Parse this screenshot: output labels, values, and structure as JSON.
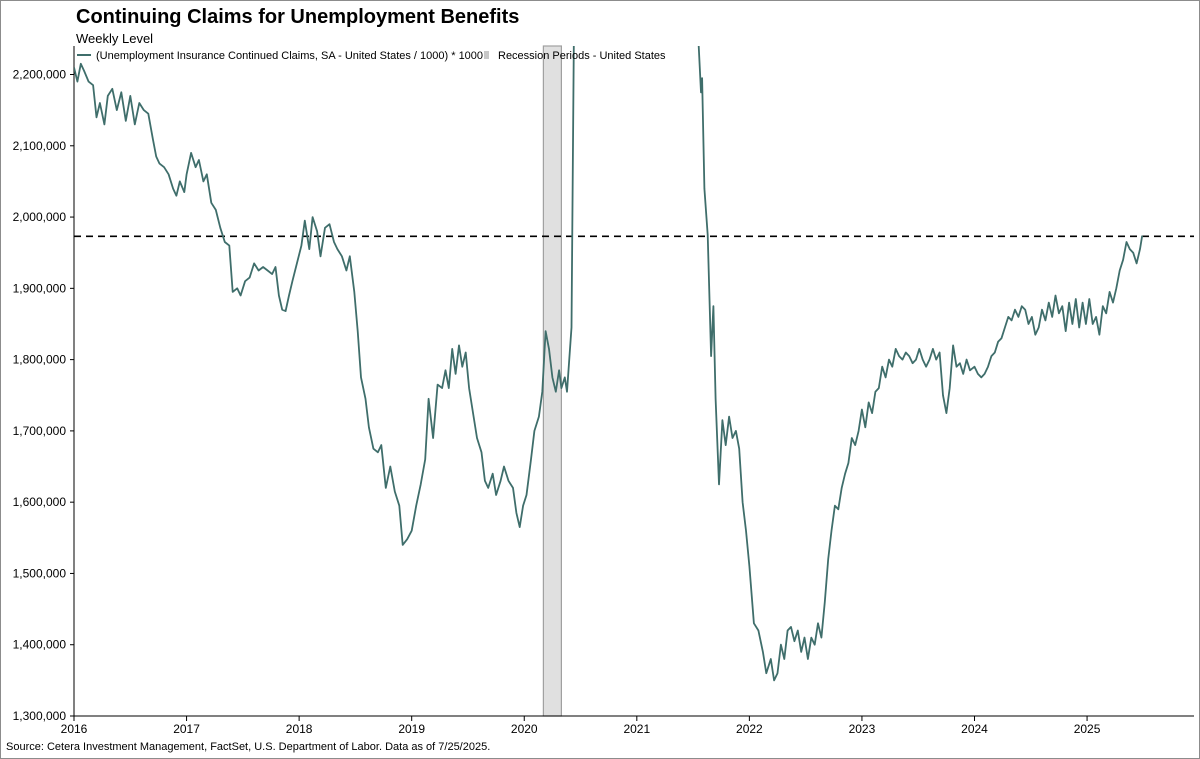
{
  "chart_data": {
    "type": "line",
    "title": "Continuing Claims for Unemployment Benefits",
    "subtitle": "Weekly Level",
    "source": "Source: Cetera Investment Management, FactSet, U.S. Department of Labor. Data as of 7/25/2025.",
    "ylim": [
      1300000,
      2240000
    ],
    "xlim": [
      2016.0,
      2025.95
    ],
    "y_ticks": [
      1300000,
      1400000,
      1500000,
      1600000,
      1700000,
      1800000,
      1900000,
      2000000,
      2100000,
      2200000
    ],
    "y_tick_labels": [
      "1,300,000",
      "1,400,000",
      "1,500,000",
      "1,600,000",
      "1,700,000",
      "1,800,000",
      "1,900,000",
      "2,000,000",
      "2,100,000",
      "2,200,000"
    ],
    "x_ticks": [
      2016,
      2017,
      2018,
      2019,
      2020,
      2021,
      2022,
      2023,
      2024,
      2025
    ],
    "x_tick_labels": [
      "2016",
      "2017",
      "2018",
      "2019",
      "2020",
      "2021",
      "2022",
      "2023",
      "2024",
      "2025"
    ],
    "reference_line": 1973000,
    "grid": false,
    "legend_position": "top-left",
    "legend": [
      {
        "label": "(Unemployment Insurance Continued Claims, SA - United States / 1000) * 1000",
        "type": "line"
      },
      {
        "label": "Recession Periods - United States",
        "type": "bar"
      }
    ],
    "recession": [
      [
        2020.17,
        2020.33
      ]
    ],
    "colors": {
      "line": "#3f6e6b",
      "recession": "#e0e0e0",
      "recession_edge": "#a0a0a0",
      "reference": "#000000"
    },
    "series": [
      {
        "name": "(Unemployment Insurance Continued Claims, SA - United States / 1000) * 1000",
        "points": [
          [
            2016.0,
            2210000
          ],
          [
            2016.03,
            2190000
          ],
          [
            2016.06,
            2215000
          ],
          [
            2016.09,
            2205000
          ],
          [
            2016.13,
            2190000
          ],
          [
            2016.17,
            2185000
          ],
          [
            2016.2,
            2140000
          ],
          [
            2016.23,
            2160000
          ],
          [
            2016.27,
            2130000
          ],
          [
            2016.3,
            2170000
          ],
          [
            2016.34,
            2180000
          ],
          [
            2016.38,
            2150000
          ],
          [
            2016.42,
            2175000
          ],
          [
            2016.46,
            2135000
          ],
          [
            2016.5,
            2170000
          ],
          [
            2016.54,
            2130000
          ],
          [
            2016.58,
            2160000
          ],
          [
            2016.62,
            2150000
          ],
          [
            2016.66,
            2145000
          ],
          [
            2016.7,
            2110000
          ],
          [
            2016.73,
            2085000
          ],
          [
            2016.76,
            2075000
          ],
          [
            2016.8,
            2070000
          ],
          [
            2016.84,
            2060000
          ],
          [
            2016.88,
            2040000
          ],
          [
            2016.91,
            2030000
          ],
          [
            2016.94,
            2050000
          ],
          [
            2016.98,
            2035000
          ],
          [
            2017.0,
            2060000
          ],
          [
            2017.04,
            2090000
          ],
          [
            2017.08,
            2070000
          ],
          [
            2017.11,
            2080000
          ],
          [
            2017.15,
            2050000
          ],
          [
            2017.18,
            2060000
          ],
          [
            2017.22,
            2020000
          ],
          [
            2017.26,
            2010000
          ],
          [
            2017.3,
            1985000
          ],
          [
            2017.34,
            1965000
          ],
          [
            2017.38,
            1960000
          ],
          [
            2017.41,
            1895000
          ],
          [
            2017.45,
            1900000
          ],
          [
            2017.48,
            1890000
          ],
          [
            2017.52,
            1910000
          ],
          [
            2017.56,
            1915000
          ],
          [
            2017.6,
            1935000
          ],
          [
            2017.64,
            1925000
          ],
          [
            2017.68,
            1930000
          ],
          [
            2017.72,
            1925000
          ],
          [
            2017.76,
            1920000
          ],
          [
            2017.79,
            1930000
          ],
          [
            2017.82,
            1890000
          ],
          [
            2017.85,
            1870000
          ],
          [
            2017.88,
            1868000
          ],
          [
            2017.91,
            1890000
          ],
          [
            2017.94,
            1910000
          ],
          [
            2017.98,
            1935000
          ],
          [
            2018.02,
            1960000
          ],
          [
            2018.05,
            1995000
          ],
          [
            2018.09,
            1955000
          ],
          [
            2018.12,
            2000000
          ],
          [
            2018.16,
            1980000
          ],
          [
            2018.19,
            1945000
          ],
          [
            2018.23,
            1985000
          ],
          [
            2018.27,
            1990000
          ],
          [
            2018.31,
            1965000
          ],
          [
            2018.34,
            1955000
          ],
          [
            2018.38,
            1945000
          ],
          [
            2018.42,
            1925000
          ],
          [
            2018.45,
            1945000
          ],
          [
            2018.49,
            1895000
          ],
          [
            2018.52,
            1840000
          ],
          [
            2018.55,
            1775000
          ],
          [
            2018.59,
            1745000
          ],
          [
            2018.62,
            1705000
          ],
          [
            2018.66,
            1675000
          ],
          [
            2018.7,
            1670000
          ],
          [
            2018.73,
            1680000
          ],
          [
            2018.77,
            1620000
          ],
          [
            2018.81,
            1650000
          ],
          [
            2018.85,
            1615000
          ],
          [
            2018.89,
            1595000
          ],
          [
            2018.92,
            1540000
          ],
          [
            2018.96,
            1548000
          ],
          [
            2019.0,
            1560000
          ],
          [
            2019.04,
            1595000
          ],
          [
            2019.08,
            1625000
          ],
          [
            2019.12,
            1660000
          ],
          [
            2019.15,
            1745000
          ],
          [
            2019.19,
            1690000
          ],
          [
            2019.23,
            1765000
          ],
          [
            2019.27,
            1760000
          ],
          [
            2019.3,
            1785000
          ],
          [
            2019.33,
            1760000
          ],
          [
            2019.36,
            1815000
          ],
          [
            2019.39,
            1780000
          ],
          [
            2019.42,
            1820000
          ],
          [
            2019.45,
            1790000
          ],
          [
            2019.48,
            1810000
          ],
          [
            2019.51,
            1760000
          ],
          [
            2019.55,
            1720000
          ],
          [
            2019.58,
            1690000
          ],
          [
            2019.62,
            1670000
          ],
          [
            2019.65,
            1630000
          ],
          [
            2019.68,
            1620000
          ],
          [
            2019.72,
            1640000
          ],
          [
            2019.75,
            1610000
          ],
          [
            2019.79,
            1630000
          ],
          [
            2019.82,
            1650000
          ],
          [
            2019.86,
            1630000
          ],
          [
            2019.9,
            1620000
          ],
          [
            2019.93,
            1585000
          ],
          [
            2019.96,
            1565000
          ],
          [
            2019.99,
            1595000
          ],
          [
            2020.02,
            1610000
          ],
          [
            2020.06,
            1660000
          ],
          [
            2020.09,
            1700000
          ],
          [
            2020.13,
            1720000
          ],
          [
            2020.16,
            1755000
          ],
          [
            2020.19,
            1840000
          ],
          [
            2020.22,
            1815000
          ],
          [
            2020.25,
            1775000
          ],
          [
            2020.28,
            1755000
          ],
          [
            2020.31,
            1785000
          ],
          [
            2020.33,
            1760000
          ],
          [
            2020.36,
            1775000
          ],
          [
            2020.38,
            1755000
          ],
          [
            2020.42,
            1845000
          ],
          [
            2020.44,
            2240000
          ]
        ]
      },
      {
        "name": "(Unemployment Insurance Continued Claims, SA - United States / 1000) * 1000",
        "points": [
          [
            2021.55,
            2240000
          ],
          [
            2021.57,
            2175000
          ],
          [
            2021.58,
            2195000
          ],
          [
            2021.6,
            2040000
          ],
          [
            2021.63,
            1975000
          ],
          [
            2021.66,
            1805000
          ],
          [
            2021.68,
            1875000
          ],
          [
            2021.7,
            1745000
          ],
          [
            2021.73,
            1625000
          ],
          [
            2021.76,
            1715000
          ],
          [
            2021.79,
            1680000
          ],
          [
            2021.82,
            1720000
          ],
          [
            2021.85,
            1690000
          ],
          [
            2021.88,
            1700000
          ],
          [
            2021.91,
            1675000
          ],
          [
            2021.94,
            1600000
          ],
          [
            2021.97,
            1560000
          ],
          [
            2022.0,
            1510000
          ],
          [
            2022.04,
            1430000
          ],
          [
            2022.08,
            1420000
          ],
          [
            2022.12,
            1390000
          ],
          [
            2022.15,
            1360000
          ],
          [
            2022.19,
            1380000
          ],
          [
            2022.22,
            1350000
          ],
          [
            2022.25,
            1360000
          ],
          [
            2022.28,
            1400000
          ],
          [
            2022.31,
            1380000
          ],
          [
            2022.34,
            1420000
          ],
          [
            2022.37,
            1425000
          ],
          [
            2022.4,
            1405000
          ],
          [
            2022.43,
            1420000
          ],
          [
            2022.46,
            1390000
          ],
          [
            2022.49,
            1410000
          ],
          [
            2022.52,
            1380000
          ],
          [
            2022.55,
            1410000
          ],
          [
            2022.58,
            1400000
          ],
          [
            2022.61,
            1430000
          ],
          [
            2022.64,
            1410000
          ],
          [
            2022.67,
            1460000
          ],
          [
            2022.7,
            1520000
          ],
          [
            2022.73,
            1560000
          ],
          [
            2022.76,
            1595000
          ],
          [
            2022.79,
            1590000
          ],
          [
            2022.82,
            1620000
          ],
          [
            2022.85,
            1640000
          ],
          [
            2022.88,
            1655000
          ],
          [
            2022.91,
            1690000
          ],
          [
            2022.94,
            1680000
          ],
          [
            2022.97,
            1700000
          ],
          [
            2023.0,
            1730000
          ],
          [
            2023.03,
            1705000
          ],
          [
            2023.06,
            1740000
          ],
          [
            2023.09,
            1725000
          ],
          [
            2023.12,
            1755000
          ],
          [
            2023.15,
            1760000
          ],
          [
            2023.18,
            1790000
          ],
          [
            2023.21,
            1775000
          ],
          [
            2023.24,
            1800000
          ],
          [
            2023.27,
            1790000
          ],
          [
            2023.3,
            1815000
          ],
          [
            2023.33,
            1805000
          ],
          [
            2023.36,
            1800000
          ],
          [
            2023.39,
            1810000
          ],
          [
            2023.42,
            1805000
          ],
          [
            2023.45,
            1795000
          ],
          [
            2023.48,
            1800000
          ],
          [
            2023.51,
            1815000
          ],
          [
            2023.54,
            1800000
          ],
          [
            2023.57,
            1790000
          ],
          [
            2023.6,
            1800000
          ],
          [
            2023.63,
            1815000
          ],
          [
            2023.66,
            1800000
          ],
          [
            2023.69,
            1810000
          ],
          [
            2023.72,
            1750000
          ],
          [
            2023.75,
            1725000
          ],
          [
            2023.78,
            1760000
          ],
          [
            2023.81,
            1820000
          ],
          [
            2023.84,
            1790000
          ],
          [
            2023.87,
            1795000
          ],
          [
            2023.9,
            1780000
          ],
          [
            2023.93,
            1800000
          ],
          [
            2023.96,
            1785000
          ],
          [
            2024.0,
            1790000
          ],
          [
            2024.03,
            1780000
          ],
          [
            2024.06,
            1775000
          ],
          [
            2024.09,
            1780000
          ],
          [
            2024.12,
            1790000
          ],
          [
            2024.15,
            1805000
          ],
          [
            2024.18,
            1810000
          ],
          [
            2024.21,
            1825000
          ],
          [
            2024.24,
            1830000
          ],
          [
            2024.27,
            1845000
          ],
          [
            2024.3,
            1860000
          ],
          [
            2024.33,
            1855000
          ],
          [
            2024.36,
            1870000
          ],
          [
            2024.39,
            1860000
          ],
          [
            2024.42,
            1875000
          ],
          [
            2024.45,
            1870000
          ],
          [
            2024.48,
            1850000
          ],
          [
            2024.51,
            1860000
          ],
          [
            2024.54,
            1835000
          ],
          [
            2024.57,
            1845000
          ],
          [
            2024.6,
            1870000
          ],
          [
            2024.63,
            1855000
          ],
          [
            2024.66,
            1880000
          ],
          [
            2024.69,
            1860000
          ],
          [
            2024.72,
            1890000
          ],
          [
            2024.75,
            1865000
          ],
          [
            2024.78,
            1875000
          ],
          [
            2024.81,
            1840000
          ],
          [
            2024.84,
            1880000
          ],
          [
            2024.87,
            1850000
          ],
          [
            2024.9,
            1885000
          ],
          [
            2024.93,
            1845000
          ],
          [
            2024.96,
            1880000
          ],
          [
            2024.99,
            1850000
          ],
          [
            2025.02,
            1885000
          ],
          [
            2025.05,
            1850000
          ],
          [
            2025.08,
            1860000
          ],
          [
            2025.11,
            1835000
          ],
          [
            2025.14,
            1875000
          ],
          [
            2025.17,
            1865000
          ],
          [
            2025.2,
            1895000
          ],
          [
            2025.23,
            1880000
          ],
          [
            2025.26,
            1900000
          ],
          [
            2025.29,
            1925000
          ],
          [
            2025.32,
            1940000
          ],
          [
            2025.35,
            1965000
          ],
          [
            2025.38,
            1955000
          ],
          [
            2025.41,
            1950000
          ],
          [
            2025.44,
            1935000
          ],
          [
            2025.47,
            1955000
          ],
          [
            2025.49,
            1974000
          ]
        ]
      }
    ]
  }
}
